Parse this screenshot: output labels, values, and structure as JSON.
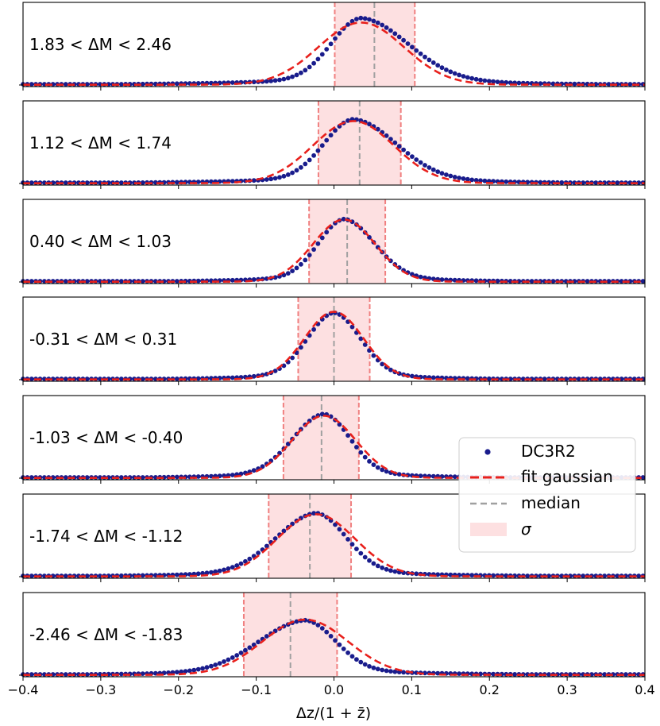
{
  "chart_data": {
    "type": "scatter",
    "xlabel": "Δz/(1 + z̄)",
    "xlim": [
      -0.4,
      0.4
    ],
    "xticks": [
      "−0.4",
      "−0.3",
      "−0.2",
      "−0.1",
      "0.0",
      "0.1",
      "0.2",
      "0.3",
      "0.4"
    ],
    "ylim": [
      0,
      1.15
    ],
    "legend": {
      "placement": "lower-right",
      "entries": [
        "DC3R2",
        "fit gaussian",
        "median",
        "σ"
      ]
    },
    "colors": {
      "points": "#191c8c",
      "fit": "#e8201c",
      "median": "#a0a0a0",
      "sigma_fill": "#fde0e1",
      "sigma_edge": "#f08080"
    },
    "panels": [
      {
        "label": "1.83 < ΔM < 2.46",
        "median": 0.052,
        "sigma": [
          0.001,
          0.104
        ],
        "fit_mu": 0.035,
        "fit_sigma": 0.055,
        "fit_amp": 0.9,
        "peak": 1.0,
        "skew": 0.65
      },
      {
        "label": "1.12 < ΔM < 1.74",
        "median": 0.033,
        "sigma": [
          -0.02,
          0.086
        ],
        "fit_mu": 0.025,
        "fit_sigma": 0.052,
        "fit_amp": 0.9,
        "peak": 0.96,
        "skew": 0.55
      },
      {
        "label": "0.40 < ΔM < 1.03",
        "median": 0.017,
        "sigma": [
          -0.032,
          0.066
        ],
        "fit_mu": 0.013,
        "fit_sigma": 0.04,
        "fit_amp": 0.9,
        "peak": 0.94,
        "skew": 0.25
      },
      {
        "label": "-0.31 < ΔM < 0.31",
        "median": 0.0,
        "sigma": [
          -0.046,
          0.046
        ],
        "fit_mu": 0.0,
        "fit_sigma": 0.038,
        "fit_amp": 0.98,
        "peak": 1.0,
        "skew": 0.0
      },
      {
        "label": "-1.03 < ΔM < -0.40",
        "median": -0.016,
        "sigma": [
          -0.065,
          0.032
        ],
        "fit_mu": -0.013,
        "fit_sigma": 0.041,
        "fit_amp": 0.9,
        "peak": 0.96,
        "skew": -0.25
      },
      {
        "label": "-1.74 < ΔM < -1.12",
        "median": -0.031,
        "sigma": [
          -0.084,
          0.022
        ],
        "fit_mu": -0.023,
        "fit_sigma": 0.05,
        "fit_amp": 0.9,
        "peak": 0.95,
        "skew": -0.4
      },
      {
        "label": "-2.46 < ΔM < -1.83",
        "median": -0.056,
        "sigma": [
          -0.116,
          0.004
        ],
        "fit_mu": -0.037,
        "fit_sigma": 0.055,
        "fit_amp": 0.8,
        "peak": 0.82,
        "skew": -0.6
      }
    ]
  }
}
